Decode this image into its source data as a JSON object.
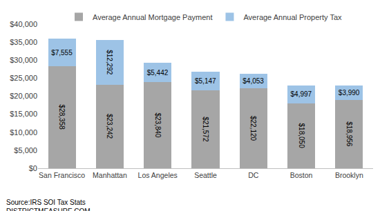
{
  "chart_data": {
    "type": "bar",
    "stacked": true,
    "data_labels": true,
    "grid": false,
    "legend": "top",
    "categories": [
      "San Francisco",
      "Manhattan",
      "Los Angeles",
      "Seattle",
      "DC",
      "Boston",
      "Brooklyn"
    ],
    "series": [
      {
        "name": "Average Annual Mortgage Payment",
        "color": "#a6a6a6",
        "values": [
          28358,
          23242,
          23840,
          21572,
          22120,
          18050,
          18956
        ],
        "value_labels": [
          "$28,358",
          "$23,242",
          "$23,840",
          "$21,572",
          "$22,120",
          "$18,050",
          "$18,956"
        ]
      },
      {
        "name": "Average Annual Property Tax",
        "color": "#9dc3e6",
        "values": [
          7555,
          12292,
          5442,
          5147,
          4053,
          4997,
          3990
        ],
        "value_labels": [
          "$7,555",
          "$12,292",
          "$5,442",
          "$5,147",
          "$4,053",
          "$4,997",
          "$3,990"
        ]
      }
    ],
    "ylim": [
      0,
      40000
    ],
    "yticks": [
      {
        "value": 0,
        "label": "$0"
      },
      {
        "value": 5000,
        "label": "$5,000"
      },
      {
        "value": 10000,
        "label": "$10,000"
      },
      {
        "value": 15000,
        "label": "$15,000"
      },
      {
        "value": 20000,
        "label": "$20,000"
      },
      {
        "value": 25000,
        "label": "$25,000"
      },
      {
        "value": 30000,
        "label": "$30,000"
      },
      {
        "value": 35000,
        "label": "$35,000"
      },
      {
        "value": 40000,
        "label": "$40,000"
      }
    ],
    "annotations": [
      "Source:IRS SOI Tax Stats",
      "DISTRICTMEASURE.COM"
    ]
  }
}
